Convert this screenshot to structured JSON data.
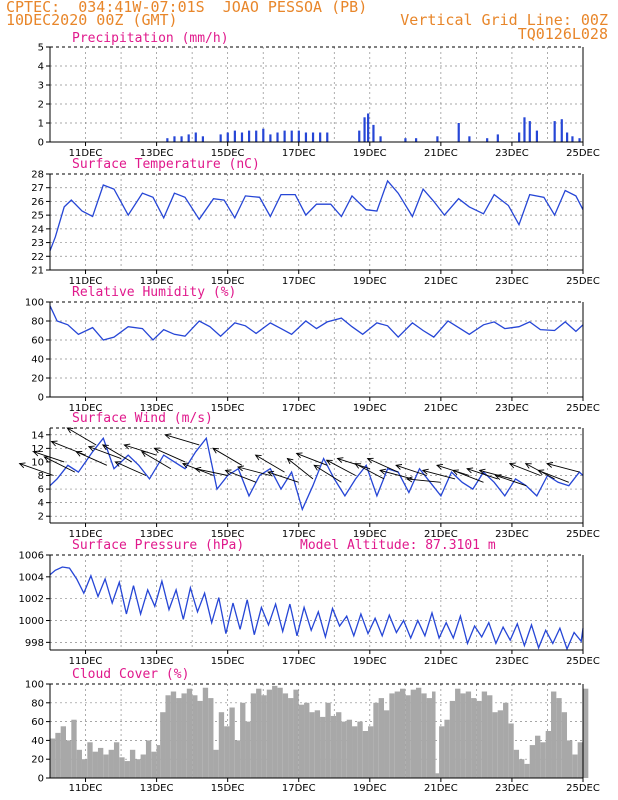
{
  "header": {
    "left_line1": "CPTEC:  034:41W-07:01S  JOAO PESSOA (PB)",
    "left_line2": "10DEC2020 00Z (GMT)",
    "right_line1": "Vertical Grid Line: 00Z",
    "right_line2": "TQ0126L028"
  },
  "colors": {
    "header": "#e8862a",
    "title": "#e0198c",
    "series": "#2646d6",
    "cloud": "#a8a8a8"
  },
  "x_axis": {
    "start_day": 10,
    "end_day": 25,
    "tick_days": [
      11,
      13,
      15,
      17,
      19,
      21,
      23,
      25
    ],
    "tick_labels": [
      "11DEC",
      "13DEC",
      "15DEC",
      "17DEC",
      "19DEC",
      "21DEC",
      "23DEC",
      "25DEC"
    ]
  },
  "chart_data": [
    {
      "id": "precip",
      "type": "bar",
      "title": "Precipitation (mm/h)",
      "ylim": [
        0,
        5
      ],
      "yticks": [
        0,
        1,
        2,
        3,
        4,
        5
      ],
      "x": [
        13.3,
        13.5,
        13.7,
        13.9,
        14.1,
        14.3,
        14.8,
        15.0,
        15.2,
        15.4,
        15.6,
        15.8,
        16.0,
        16.2,
        16.4,
        16.6,
        16.8,
        17.0,
        17.2,
        17.4,
        17.6,
        17.8,
        18.7,
        18.85,
        18.95,
        19.1,
        19.3,
        20.0,
        20.3,
        20.9,
        21.5,
        21.8,
        22.3,
        22.6,
        23.2,
        23.35,
        23.5,
        23.7,
        24.2,
        24.4,
        24.55,
        24.7,
        24.9
      ],
      "values": [
        0.2,
        0.3,
        0.3,
        0.4,
        0.5,
        0.3,
        0.4,
        0.5,
        0.6,
        0.5,
        0.6,
        0.6,
        0.7,
        0.4,
        0.5,
        0.6,
        0.6,
        0.6,
        0.5,
        0.5,
        0.5,
        0.5,
        0.6,
        1.3,
        1.5,
        0.9,
        0.3,
        0.2,
        0.2,
        0.3,
        1.0,
        0.3,
        0.2,
        0.4,
        0.5,
        1.3,
        1.1,
        0.6,
        1.1,
        1.2,
        0.5,
        0.3,
        0.2
      ]
    },
    {
      "id": "temp",
      "type": "line",
      "title": "Surface Temperature (nC)",
      "ylim": [
        21,
        28
      ],
      "yticks": [
        21,
        22,
        23,
        24,
        25,
        26,
        27,
        28
      ],
      "x": [
        10.0,
        10.15,
        10.4,
        10.6,
        10.9,
        11.2,
        11.5,
        11.8,
        12.2,
        12.6,
        12.9,
        13.2,
        13.5,
        13.8,
        14.2,
        14.6,
        14.9,
        15.2,
        15.5,
        15.9,
        16.2,
        16.5,
        16.9,
        17.2,
        17.5,
        17.9,
        18.2,
        18.5,
        18.9,
        19.2,
        19.5,
        19.8,
        20.2,
        20.5,
        20.8,
        21.1,
        21.5,
        21.8,
        22.2,
        22.5,
        22.9,
        23.2,
        23.5,
        23.9,
        24.2,
        24.5,
        24.8,
        25.0
      ],
      "values": [
        22.4,
        23.4,
        25.6,
        26.1,
        25.3,
        24.9,
        27.2,
        26.9,
        25.0,
        26.6,
        26.3,
        24.8,
        26.6,
        26.3,
        24.7,
        26.2,
        26.1,
        24.8,
        26.4,
        26.3,
        24.9,
        26.5,
        26.5,
        25.0,
        25.8,
        25.8,
        24.9,
        26.4,
        25.4,
        25.3,
        27.5,
        26.6,
        24.9,
        26.9,
        26.0,
        25.0,
        26.2,
        25.6,
        25.1,
        26.5,
        25.7,
        24.3,
        26.5,
        26.3,
        25.0,
        26.8,
        26.4,
        25.4
      ]
    },
    {
      "id": "rh",
      "type": "line",
      "title": "Relative Humidity (%)",
      "ylim": [
        0,
        100
      ],
      "yticks": [
        0,
        20,
        40,
        60,
        80,
        100
      ],
      "x": [
        10.0,
        10.2,
        10.5,
        10.8,
        11.2,
        11.5,
        11.8,
        12.2,
        12.6,
        12.9,
        13.2,
        13.5,
        13.8,
        14.2,
        14.5,
        14.8,
        15.2,
        15.5,
        15.8,
        16.2,
        16.5,
        16.8,
        17.2,
        17.5,
        17.8,
        18.2,
        18.5,
        18.8,
        19.2,
        19.5,
        19.8,
        20.2,
        20.5,
        20.8,
        21.2,
        21.5,
        21.8,
        22.2,
        22.5,
        22.8,
        23.2,
        23.5,
        23.8,
        24.2,
        24.5,
        24.8,
        25.0
      ],
      "values": [
        96,
        80,
        76,
        66,
        73,
        60,
        63,
        74,
        72,
        60,
        71,
        66,
        64,
        80,
        74,
        64,
        78,
        75,
        67,
        78,
        72,
        66,
        80,
        72,
        79,
        83,
        74,
        66,
        78,
        75,
        63,
        78,
        70,
        63,
        80,
        73,
        66,
        76,
        79,
        72,
        74,
        79,
        71,
        70,
        79,
        69,
        76
      ]
    },
    {
      "id": "wind",
      "type": "line",
      "title": "Surface Wind (m/s)",
      "ylim": [
        1,
        15
      ],
      "yticks": [
        2,
        4,
        6,
        8,
        10,
        12,
        14
      ],
      "x": [
        10.0,
        10.2,
        10.5,
        10.8,
        11.2,
        11.5,
        11.8,
        12.2,
        12.5,
        12.8,
        13.2,
        13.5,
        13.8,
        14.1,
        14.4,
        14.7,
        15.0,
        15.3,
        15.6,
        15.9,
        16.2,
        16.5,
        16.8,
        17.1,
        17.4,
        17.7,
        18.0,
        18.3,
        18.6,
        18.9,
        19.2,
        19.5,
        19.8,
        20.1,
        20.4,
        20.7,
        21.0,
        21.3,
        21.6,
        21.9,
        22.2,
        22.5,
        22.8,
        23.1,
        23.4,
        23.7,
        24.0,
        24.3,
        24.6,
        24.9,
        25.0
      ],
      "values": [
        6.5,
        7.5,
        9.5,
        8.5,
        11.5,
        13.5,
        9.0,
        11.0,
        9.5,
        7.5,
        11.0,
        10.0,
        9.0,
        11.5,
        13.5,
        6.0,
        8.0,
        9.0,
        5.0,
        8.0,
        9.0,
        6.0,
        8.5,
        3.0,
        6.5,
        10.5,
        7.5,
        5.0,
        7.5,
        9.5,
        5.0,
        9.0,
        8.5,
        5.5,
        9.0,
        7.0,
        5.0,
        8.5,
        7.0,
        6.0,
        8.5,
        7.0,
        5.0,
        7.5,
        6.5,
        5.0,
        8.0,
        7.0,
        6.5,
        8.5,
        8.0
      ]
    },
    {
      "id": "pres",
      "type": "line",
      "title": "Surface Pressure (hPa)",
      "subtitle": "Model Altitude: 87.3101 m",
      "ylim": [
        997.3,
        1006
      ],
      "yticks": [
        998,
        1000,
        1002,
        1004,
        1006
      ],
      "x": [
        10.0,
        10.15,
        10.35,
        10.55,
        10.75,
        10.95,
        11.15,
        11.35,
        11.55,
        11.75,
        11.95,
        12.15,
        12.35,
        12.55,
        12.75,
        12.95,
        13.15,
        13.35,
        13.55,
        13.75,
        13.95,
        14.15,
        14.35,
        14.55,
        14.75,
        14.95,
        15.15,
        15.35,
        15.55,
        15.75,
        15.95,
        16.15,
        16.35,
        16.55,
        16.75,
        16.95,
        17.15,
        17.35,
        17.55,
        17.75,
        17.95,
        18.15,
        18.35,
        18.55,
        18.75,
        18.95,
        19.15,
        19.35,
        19.55,
        19.75,
        19.95,
        20.15,
        20.35,
        20.55,
        20.75,
        20.95,
        21.15,
        21.35,
        21.55,
        21.75,
        21.95,
        22.15,
        22.35,
        22.55,
        22.75,
        22.95,
        23.15,
        23.35,
        23.55,
        23.75,
        23.95,
        24.15,
        24.35,
        24.55,
        24.75,
        24.95,
        25.0
      ],
      "values": [
        1004.2,
        1004.6,
        1004.9,
        1004.8,
        1003.8,
        1002.5,
        1004.1,
        1002.2,
        1003.8,
        1001.6,
        1003.5,
        1000.6,
        1003.2,
        1000.6,
        1002.8,
        1001.3,
        1003.6,
        1001.0,
        1002.8,
        1000.1,
        1003.0,
        1000.8,
        1002.5,
        999.8,
        1002.1,
        998.8,
        1001.6,
        999.2,
        1001.9,
        998.7,
        1001.2,
        999.6,
        1001.5,
        999.0,
        1001.5,
        998.6,
        1001.2,
        999.1,
        1000.8,
        998.5,
        1001.1,
        999.5,
        1000.4,
        998.6,
        1000.6,
        998.8,
        1000.2,
        998.6,
        1000.5,
        998.9,
        1000.0,
        998.4,
        1000.0,
        998.6,
        1000.7,
        998.4,
        999.8,
        998.4,
        1000.4,
        997.9,
        999.5,
        998.5,
        999.8,
        997.9,
        999.4,
        998.2,
        999.7,
        997.7,
        999.6,
        997.5,
        999.1,
        997.9,
        999.3,
        997.4,
        998.9,
        998.1,
        999.3
      ]
    },
    {
      "id": "cloud",
      "type": "area",
      "title": "Cloud Cover (%)",
      "ylim": [
        0,
        100
      ],
      "yticks": [
        0,
        20,
        40,
        60,
        80,
        100
      ],
      "x": [
        10.0,
        10.15,
        10.3,
        10.45,
        10.6,
        10.75,
        10.9,
        11.05,
        11.2,
        11.35,
        11.5,
        11.65,
        11.8,
        11.95,
        12.1,
        12.25,
        12.4,
        12.55,
        12.7,
        12.85,
        13.0,
        13.1,
        13.25,
        13.4,
        13.55,
        13.7,
        13.85,
        14.0,
        14.15,
        14.3,
        14.45,
        14.6,
        14.75,
        14.9,
        15.05,
        15.2,
        15.35,
        15.5,
        15.65,
        15.8,
        15.95,
        16.1,
        16.25,
        16.4,
        16.55,
        16.7,
        16.85,
        17.0,
        17.15,
        17.3,
        17.45,
        17.6,
        17.75,
        17.9,
        18.05,
        18.2,
        18.35,
        18.5,
        18.65,
        18.8,
        18.95,
        19.1,
        19.25,
        19.4,
        19.55,
        19.7,
        19.85,
        20.0,
        20.15,
        20.3,
        20.45,
        20.6,
        20.75,
        20.85,
        20.95,
        21.1,
        21.25,
        21.4,
        21.55,
        21.7,
        21.85,
        22.0,
        22.15,
        22.3,
        22.45,
        22.6,
        22.75,
        22.9,
        23.05,
        23.2,
        23.35,
        23.5,
        23.65,
        23.8,
        23.95,
        24.1,
        24.25,
        24.4,
        24.55,
        24.7,
        24.85,
        25.0
      ],
      "values": [
        42,
        48,
        55,
        40,
        62,
        30,
        20,
        38,
        28,
        32,
        25,
        30,
        38,
        22,
        18,
        30,
        20,
        25,
        40,
        28,
        35,
        70,
        88,
        92,
        85,
        90,
        95,
        88,
        82,
        96,
        85,
        30,
        70,
        55,
        75,
        40,
        80,
        60,
        90,
        95,
        88,
        94,
        98,
        96,
        90,
        85,
        94,
        78,
        80,
        70,
        72,
        65,
        80,
        66,
        70,
        60,
        62,
        55,
        60,
        50,
        55,
        80,
        85,
        72,
        90,
        92,
        95,
        88,
        94,
        96,
        90,
        85,
        92,
        5,
        55,
        62,
        82,
        95,
        90,
        92,
        85,
        82,
        92,
        88,
        70,
        72,
        80,
        58,
        30,
        20,
        15,
        35,
        45,
        38,
        50,
        92,
        85,
        70,
        40,
        25,
        38,
        95
      ]
    }
  ],
  "wind_arrows": {
    "x": [
      10.1,
      10.4,
      10.7,
      11.0,
      11.3,
      11.6,
      12.0,
      12.3,
      12.7,
      13.0,
      13.4,
      13.8,
      14.2,
      14.6,
      15.0,
      15.4,
      15.8,
      16.2,
      16.6,
      17.0,
      17.4,
      17.8,
      18.2,
      18.6,
      19.0,
      19.4,
      19.8,
      20.2,
      20.6,
      21.0,
      21.4,
      21.8,
      22.2,
      22.6,
      23.0,
      23.4,
      23.8,
      24.2,
      24.6,
      24.9
    ],
    "speed": [
      8.0,
      10.0,
      8.5,
      11.0,
      12.5,
      9.5,
      10.5,
      10.0,
      8.0,
      11.0,
      9.0,
      10.0,
      12.5,
      8.0,
      8.0,
      9.5,
      7.0,
      8.0,
      8.5,
      7.0,
      7.5,
      9.5,
      7.0,
      8.0,
      9.0,
      7.5,
      8.5,
      7.5,
      8.0,
      7.0,
      7.5,
      8.0,
      7.0,
      7.5,
      7.5,
      6.5,
      8.0,
      7.5,
      7.0,
      8.5
    ],
    "dx": [
      -1.0,
      -0.9,
      -0.9,
      -1.0,
      -0.85,
      -0.9,
      -0.95,
      -0.85,
      -0.9,
      -0.95,
      -0.85,
      -0.9,
      -1.0,
      -0.9,
      -0.95,
      -0.85,
      -0.9,
      -0.95,
      -0.85,
      -0.9,
      -0.75,
      -0.9,
      -0.8,
      -0.85,
      -0.95,
      -0.85,
      -0.9,
      -0.95,
      -0.9,
      -1.0,
      -0.95,
      -0.95,
      -0.9,
      -0.9,
      -0.95,
      -0.9,
      -0.9,
      -0.85,
      -0.9,
      -0.95
    ],
    "dy": [
      0.35,
      0.3,
      0.45,
      0.4,
      0.5,
      0.4,
      0.35,
      0.5,
      0.4,
      0.3,
      0.5,
      0.4,
      0.3,
      0.35,
      0.2,
      0.5,
      0.35,
      0.25,
      0.5,
      0.3,
      0.6,
      0.35,
      0.5,
      0.45,
      0.3,
      0.45,
      0.4,
      0.25,
      0.3,
      0.1,
      0.25,
      0.3,
      0.35,
      0.3,
      0.25,
      0.3,
      0.35,
      0.45,
      0.35,
      0.25
    ]
  }
}
